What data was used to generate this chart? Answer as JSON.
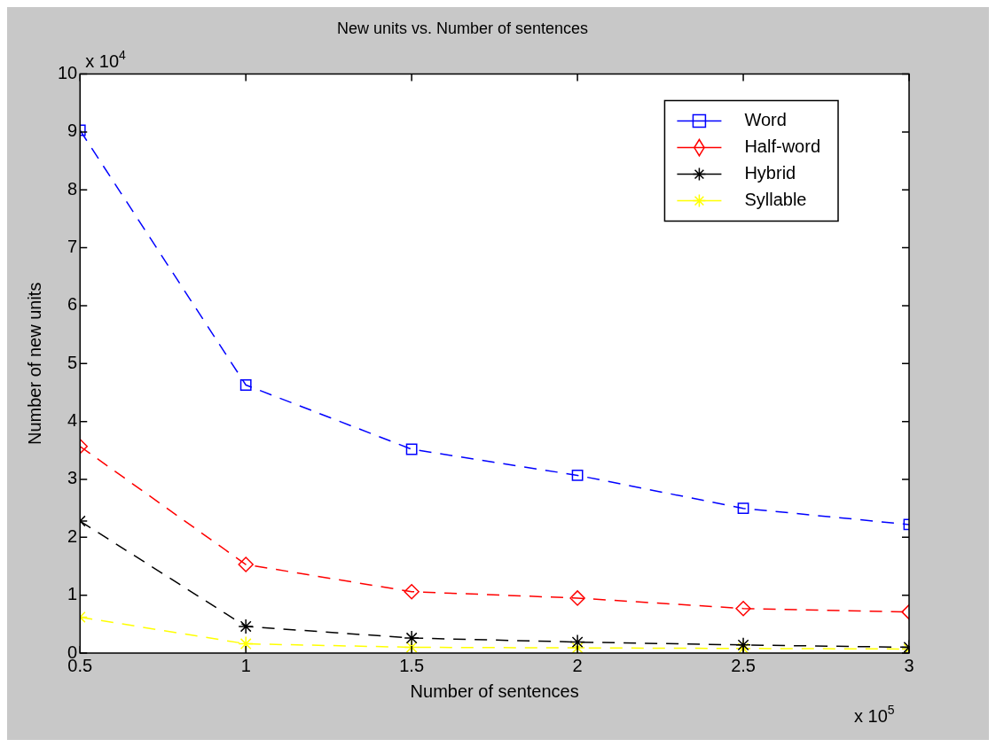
{
  "chart_data": {
    "type": "line",
    "title": "New units vs. Number of sentences",
    "xlabel": "Number of sentences",
    "ylabel": "Number of new units",
    "x": [
      0.5,
      1,
      1.5,
      2,
      2.5,
      3
    ],
    "series": [
      {
        "name": "Word",
        "color": "#0000ff",
        "marker": "square",
        "values": [
          9.03,
          4.63,
          3.52,
          3.07,
          2.5,
          2.22
        ]
      },
      {
        "name": "Half-word",
        "color": "#ff0000",
        "marker": "diamond",
        "values": [
          3.57,
          1.53,
          1.06,
          0.95,
          0.77,
          0.71
        ]
      },
      {
        "name": "Hybrid",
        "color": "#000000",
        "marker": "cross",
        "values": [
          2.28,
          0.46,
          0.26,
          0.19,
          0.14,
          0.1
        ]
      },
      {
        "name": "Syllable",
        "color": "#ffff00",
        "marker": "cross",
        "values": [
          0.62,
          0.16,
          0.1,
          0.09,
          0.08,
          0.07
        ]
      }
    ],
    "xlim": [
      0.5,
      3
    ],
    "xticks": [
      0.5,
      1,
      1.5,
      2,
      2.5,
      3
    ],
    "ylim": [
      0,
      10
    ],
    "yticks": [
      0,
      1,
      2,
      3,
      4,
      5,
      6,
      7,
      8,
      9,
      10
    ],
    "annotations": [
      "x 10$^{4}$",
      "x 10$^{5}$"
    ],
    "legend": "top right",
    "grid": false,
    "line_style": "dashed"
  }
}
